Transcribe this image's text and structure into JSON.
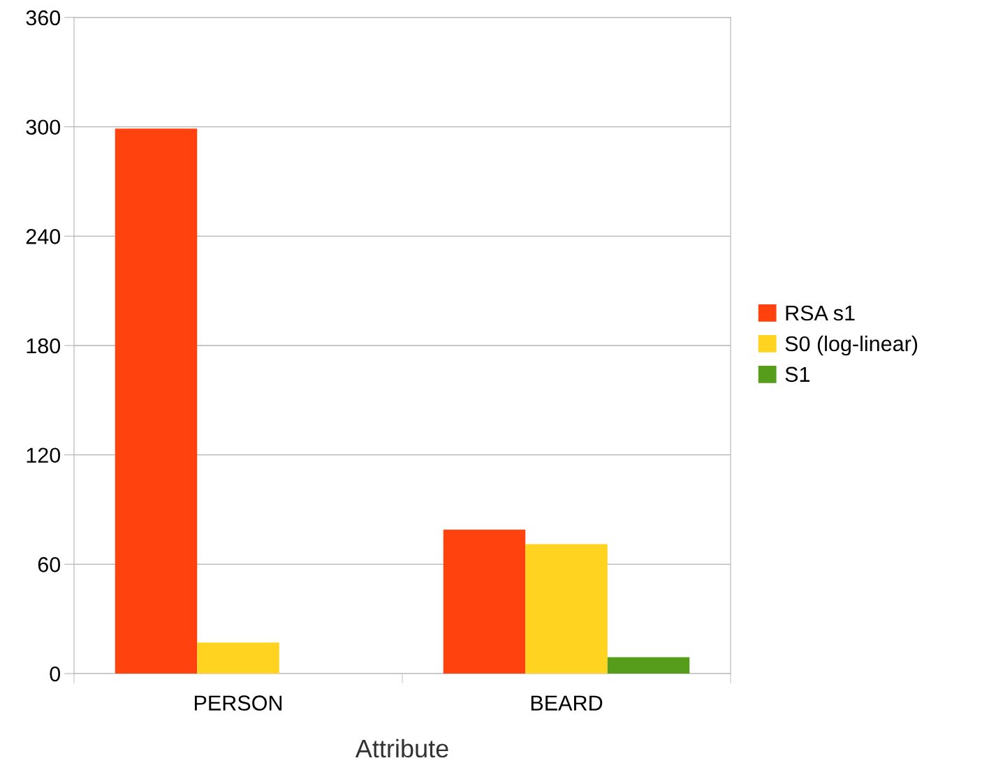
{
  "chart_data": {
    "type": "bar",
    "xlabel": "Attribute",
    "categories": [
      "PERSON",
      "BEARD"
    ],
    "series": [
      {
        "name": "RSA s1",
        "color": "#ff420e",
        "values": [
          299,
          79
        ]
      },
      {
        "name": "S0 (log-linear)",
        "color": "#ffd320",
        "values": [
          17,
          71
        ]
      },
      {
        "name": "S1",
        "color": "#579d1c",
        "values": [
          0,
          9
        ]
      }
    ],
    "ylim": [
      0,
      360
    ],
    "yticks": [
      0,
      60,
      120,
      180,
      240,
      300,
      360
    ],
    "grid": "y",
    "legend": "right"
  }
}
